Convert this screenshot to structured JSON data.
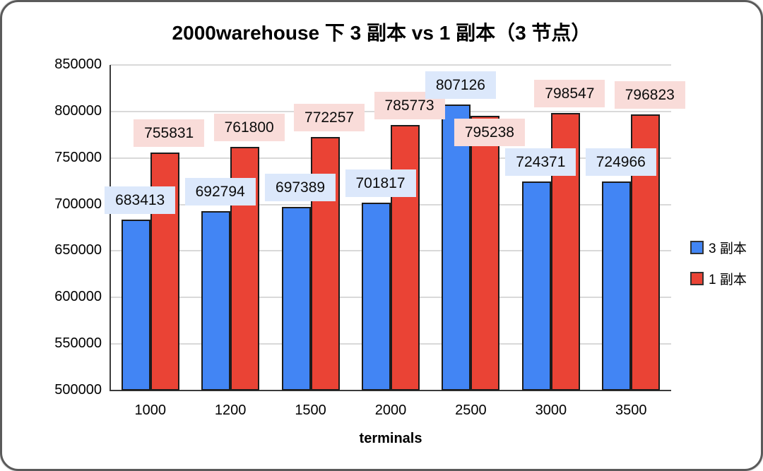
{
  "chart_data": {
    "type": "bar",
    "title": "2000warehouse 下 3 副本 vs 1 副本（3 节点）",
    "xlabel": "terminals",
    "ylabel": "",
    "categories": [
      "1000",
      "1200",
      "1500",
      "2000",
      "2500",
      "3000",
      "3500"
    ],
    "series": [
      {
        "name": "3 副本",
        "color": "#4285f4",
        "label_bg": "#dce8fb",
        "values": [
          683413,
          692794,
          697389,
          701817,
          807126,
          724371,
          724966
        ]
      },
      {
        "name": "1 副本",
        "color": "#ea4335",
        "label_bg": "#f9dcd9",
        "values": [
          755831,
          761800,
          772257,
          785773,
          795238,
          798547,
          796823
        ]
      }
    ],
    "ylim": [
      500000,
      850000
    ],
    "y_ticks": [
      500000,
      550000,
      600000,
      650000,
      700000,
      750000,
      800000,
      850000
    ],
    "grid": true,
    "legend_position": "right",
    "data_labels": true
  }
}
